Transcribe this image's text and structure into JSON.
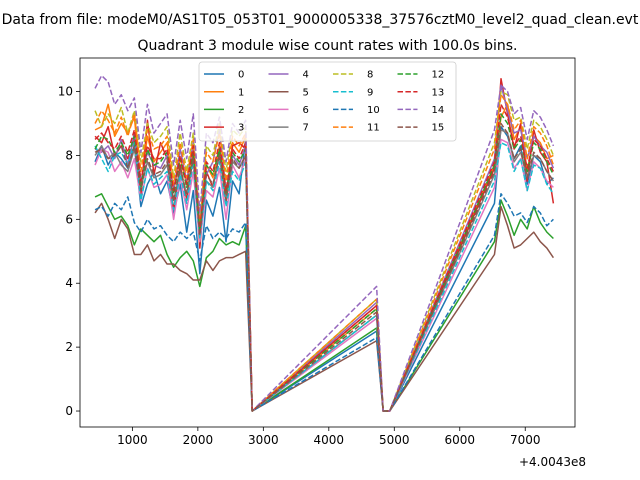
{
  "figure_title": "Data from file: modeM0/AS1T05_053T01_9000005338_37576cztM0_level2_quad_clean.evt",
  "chart_data": {
    "type": "line",
    "title": "Quadrant 3 module wise count rates with 100.0s bins.",
    "xlabel": "",
    "ylabel": "",
    "x_offset_label": "+4.0043e8",
    "xlim": [
      200,
      7760
    ],
    "ylim": [
      -0.5,
      11.05
    ],
    "xticks": [
      1000,
      2000,
      3000,
      4000,
      5000,
      6000,
      7000
    ],
    "yticks": [
      0,
      2,
      4,
      6,
      8,
      10
    ],
    "legend_location": "upper-center",
    "legend_columns": 4,
    "x": [
      430,
      530,
      630,
      730,
      830,
      930,
      1030,
      1130,
      1230,
      1330,
      1430,
      1530,
      1630,
      1730,
      1830,
      1930,
      2030,
      2130,
      2230,
      2330,
      2430,
      2530,
      2630,
      2730,
      2830,
      4730,
      4830,
      4930,
      6530,
      6630,
      6730,
      6830,
      6930,
      7030,
      7130,
      7230,
      7330,
      7430,
      7530
    ],
    "series": [
      {
        "name": "0",
        "color": "#1f77b4",
        "dash": "solid",
        "pre": [
          7.8,
          8.3,
          7.7,
          8.1,
          7.9,
          7.6,
          8.3,
          6.4,
          7.1,
          7.5,
          6.8,
          7.2,
          6.2,
          7.1,
          5.6,
          6.9,
          4.3,
          6.6,
          6.1,
          7.0,
          5.3,
          7.2,
          6.8,
          8.5
        ],
        "peak": 2.5,
        "post": [
          6.5,
          8.9,
          8.6,
          7.9,
          8.3,
          7.1,
          8.0,
          7.8,
          7.1,
          7.3
        ]
      },
      {
        "name": "1",
        "color": "#ff7f0e",
        "dash": "solid",
        "pre": [
          8.8,
          8.9,
          9.6,
          8.6,
          9.0,
          8.7,
          9.2,
          7.1,
          8.6,
          7.8,
          8.1,
          8.4,
          6.9,
          7.9,
          7.1,
          8.2,
          5.3,
          7.7,
          7.3,
          8.3,
          6.7,
          8.4,
          8.1,
          8.6
        ],
        "peak": 3.2,
        "post": [
          7.7,
          9.2,
          9.6,
          8.5,
          8.9,
          7.5,
          8.6,
          8.4,
          7.9,
          8.0
        ]
      },
      {
        "name": "2",
        "color": "#2ca02c",
        "dash": "solid",
        "pre": [
          6.7,
          6.8,
          6.4,
          6.0,
          6.1,
          5.8,
          5.2,
          5.7,
          5.5,
          5.3,
          5.5,
          4.9,
          4.5,
          4.8,
          5.0,
          4.7,
          3.9,
          4.8,
          5.0,
          5.4,
          5.2,
          5.3,
          5.2,
          5.8
        ],
        "peak": 2.6,
        "post": [
          5.3,
          6.6,
          6.1,
          5.5,
          6.0,
          5.7,
          6.4,
          5.9,
          5.6,
          5.4
        ]
      },
      {
        "name": "3",
        "color": "#d62728",
        "dash": "solid",
        "pre": [
          8.6,
          8.4,
          8.9,
          8.0,
          8.3,
          7.9,
          8.5,
          6.7,
          9.1,
          7.4,
          8.4,
          7.9,
          6.3,
          7.7,
          6.6,
          8.0,
          5.1,
          7.5,
          7.0,
          8.1,
          6.5,
          8.3,
          8.4,
          8.2
        ],
        "peak": 3.3,
        "post": [
          7.6,
          10.4,
          9.3,
          8.2,
          9.0,
          7.2,
          8.8,
          8.1,
          7.8,
          6.5
        ]
      },
      {
        "name": "4",
        "color": "#9467bd",
        "dash": "solid",
        "pre": [
          8.2,
          8.1,
          8.3,
          7.9,
          8.5,
          7.7,
          8.7,
          7.2,
          8.1,
          7.7,
          7.6,
          8.0,
          6.9,
          8.2,
          7.2,
          8.4,
          5.7,
          7.4,
          7.8,
          8.8,
          6.9,
          8.0,
          7.7,
          8.3
        ],
        "peak": 3.4,
        "post": [
          7.9,
          10.2,
          9.4,
          8.7,
          8.8,
          7.9,
          8.6,
          8.3,
          8.1,
          7.6
        ]
      },
      {
        "name": "5",
        "color": "#8c564b",
        "dash": "solid",
        "pre": [
          6.2,
          6.5,
          6.0,
          5.4,
          6.0,
          5.7,
          4.9,
          4.9,
          5.2,
          4.7,
          4.9,
          4.6,
          4.6,
          4.4,
          4.3,
          4.1,
          4.1,
          4.7,
          4.4,
          4.7,
          4.8,
          4.8,
          4.9,
          5.0
        ],
        "peak": 2.2,
        "post": [
          4.9,
          6.4,
          5.8,
          5.1,
          5.2,
          5.4,
          5.6,
          5.3,
          5.1,
          4.8
        ]
      },
      {
        "name": "6",
        "color": "#e377c2",
        "dash": "solid",
        "pre": [
          7.7,
          8.2,
          8.1,
          7.5,
          7.8,
          7.3,
          7.9,
          6.6,
          7.6,
          7.0,
          7.1,
          7.4,
          6.0,
          7.3,
          6.3,
          7.5,
          5.3,
          6.9,
          6.7,
          7.6,
          6.0,
          7.7,
          7.3,
          7.9
        ],
        "peak": 2.9,
        "post": [
          7.0,
          8.5,
          8.4,
          7.6,
          7.9,
          6.9,
          7.8,
          7.6,
          7.2,
          7.0
        ]
      },
      {
        "name": "7",
        "color": "#7f7f7f",
        "dash": "solid",
        "pre": [
          8.0,
          8.3,
          7.9,
          8.1,
          7.7,
          7.5,
          8.2,
          7.0,
          7.8,
          7.3,
          7.4,
          7.7,
          6.6,
          7.5,
          6.8,
          7.9,
          5.5,
          7.2,
          7.0,
          8.0,
          6.6,
          7.8,
          7.6,
          8.0
        ],
        "peak": 3.0,
        "post": [
          7.4,
          8.8,
          8.7,
          7.8,
          8.1,
          7.3,
          8.0,
          7.9,
          7.5,
          7.2
        ]
      },
      {
        "name": "8",
        "color": "#bcbd22",
        "dash": "dashed",
        "pre": [
          9.4,
          8.9,
          9.3,
          9.0,
          9.5,
          8.7,
          9.4,
          7.8,
          9.0,
          8.4,
          8.6,
          8.9,
          7.3,
          8.7,
          7.5,
          8.7,
          5.9,
          8.3,
          8.0,
          9.0,
          7.5,
          8.8,
          8.6,
          8.9
        ],
        "peak": 3.5,
        "post": [
          8.4,
          10.0,
          9.9,
          9.1,
          9.2,
          8.2,
          9.1,
          8.9,
          8.5,
          8.0
        ]
      },
      {
        "name": "9",
        "color": "#17becf",
        "dash": "dashed",
        "pre": [
          8.3,
          7.9,
          7.5,
          8.0,
          8.1,
          7.7,
          8.4,
          6.6,
          7.6,
          7.1,
          7.3,
          7.5,
          6.3,
          7.4,
          6.5,
          7.8,
          5.4,
          7.2,
          6.9,
          7.8,
          6.4,
          7.5,
          7.2,
          7.8
        ],
        "peak": 3.0,
        "post": [
          7.2,
          8.4,
          8.3,
          7.5,
          7.9,
          6.9,
          7.7,
          7.6,
          7.1,
          6.8
        ]
      },
      {
        "name": "10",
        "color": "#1f77b4",
        "dash": "dashed",
        "pre": [
          6.3,
          6.4,
          6.1,
          6.5,
          6.3,
          6.7,
          5.9,
          5.6,
          6.0,
          5.7,
          5.8,
          5.5,
          5.3,
          5.6,
          5.4,
          5.6,
          4.7,
          5.8,
          5.4,
          5.6,
          5.4,
          5.7,
          5.6,
          5.9
        ],
        "peak": 2.3,
        "post": [
          5.5,
          6.8,
          6.5,
          6.1,
          6.2,
          5.9,
          6.4,
          6.2,
          5.8,
          6.0
        ]
      },
      {
        "name": "11",
        "color": "#ff7f0e",
        "dash": "dashed",
        "pre": [
          9.0,
          9.4,
          9.1,
          8.7,
          9.2,
          8.6,
          9.3,
          7.5,
          8.8,
          8.2,
          8.3,
          8.6,
          7.1,
          8.4,
          7.3,
          8.5,
          5.8,
          8.1,
          7.8,
          8.7,
          7.2,
          8.6,
          8.3,
          8.7
        ],
        "peak": 3.5,
        "post": [
          8.2,
          9.9,
          9.6,
          8.8,
          9.1,
          7.9,
          8.9,
          8.7,
          8.3,
          7.7
        ]
      },
      {
        "name": "12",
        "color": "#2ca02c",
        "dash": "dashed",
        "pre": [
          8.2,
          8.6,
          8.5,
          8.1,
          8.4,
          8.0,
          8.6,
          7.0,
          8.2,
          7.7,
          7.8,
          8.1,
          6.8,
          7.9,
          7.0,
          8.1,
          5.6,
          7.7,
          7.4,
          8.2,
          6.8,
          8.1,
          7.8,
          8.2
        ],
        "peak": 3.2,
        "post": [
          7.7,
          9.3,
          9.0,
          8.2,
          8.5,
          7.5,
          8.4,
          8.2,
          7.8,
          7.4
        ]
      },
      {
        "name": "13",
        "color": "#d62728",
        "dash": "dashed",
        "pre": [
          8.5,
          8.7,
          8.4,
          8.2,
          8.6,
          8.1,
          8.8,
          7.2,
          8.3,
          7.9,
          7.9,
          8.2,
          6.9,
          8.0,
          7.1,
          8.3,
          5.6,
          7.8,
          7.5,
          8.4,
          6.9,
          8.2,
          7.9,
          8.4
        ],
        "peak": 3.3,
        "post": [
          7.8,
          9.6,
          9.2,
          8.3,
          8.6,
          7.6,
          8.5,
          8.3,
          7.9,
          7.5
        ]
      },
      {
        "name": "14",
        "color": "#9467bd",
        "dash": "dashed",
        "pre": [
          10.1,
          10.5,
          10.3,
          9.6,
          9.9,
          9.4,
          9.8,
          8.1,
          9.6,
          8.7,
          9.0,
          9.3,
          7.7,
          9.1,
          7.9,
          9.3,
          6.2,
          8.7,
          8.4,
          9.2,
          7.8,
          9.0,
          8.7,
          9.1
        ],
        "peak": 3.9,
        "post": [
          8.8,
          10.2,
          10.0,
          9.3,
          9.5,
          8.5,
          9.4,
          9.2,
          8.8,
          8.3
        ]
      },
      {
        "name": "15",
        "color": "#8c564b",
        "dash": "dashed",
        "pre": [
          8.1,
          8.2,
          7.9,
          8.0,
          8.3,
          7.6,
          8.3,
          6.9,
          7.9,
          7.4,
          7.5,
          7.8,
          6.6,
          7.6,
          6.8,
          7.9,
          5.5,
          7.4,
          7.1,
          8.0,
          6.6,
          7.9,
          7.6,
          8.0
        ],
        "peak": 3.1,
        "post": [
          7.5,
          9.0,
          8.7,
          7.9,
          8.2,
          7.3,
          8.1,
          7.9,
          7.5,
          7.2
        ]
      }
    ]
  }
}
